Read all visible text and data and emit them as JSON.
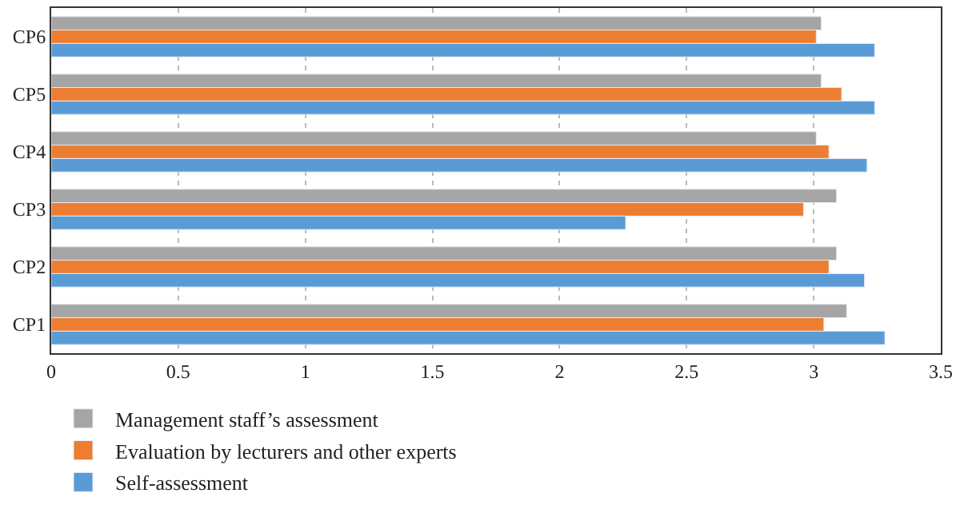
{
  "chart_data": {
    "type": "bar",
    "orientation": "horizontal",
    "categories": [
      "CP6",
      "CP5",
      "CP4",
      "CP3",
      "CP2",
      "CP1"
    ],
    "series": [
      {
        "name": "Management staff’s assessment",
        "color": "#a5a5a5",
        "values": [
          3.03,
          3.03,
          3.01,
          3.09,
          3.09,
          3.13
        ]
      },
      {
        "name": "Evaluation by lecturers and other experts",
        "color": "#ed7d31",
        "values": [
          3.01,
          3.11,
          3.06,
          2.96,
          3.06,
          3.04
        ]
      },
      {
        "name": "Self-assessment",
        "color": "#5b9bd5",
        "values": [
          3.24,
          3.24,
          3.21,
          2.26,
          3.2,
          3.28
        ]
      }
    ],
    "xlim": [
      0,
      3.5
    ],
    "xticks": [
      0,
      {
        "value": 0.5,
        "label": "0.5"
      },
      1,
      {
        "value": 1.5,
        "label": "1.5"
      },
      2,
      {
        "value": 2.5,
        "label": "2.5"
      },
      3,
      {
        "value": 3.5,
        "label": "3.5"
      }
    ],
    "grid": "x",
    "legend": "bottom"
  }
}
